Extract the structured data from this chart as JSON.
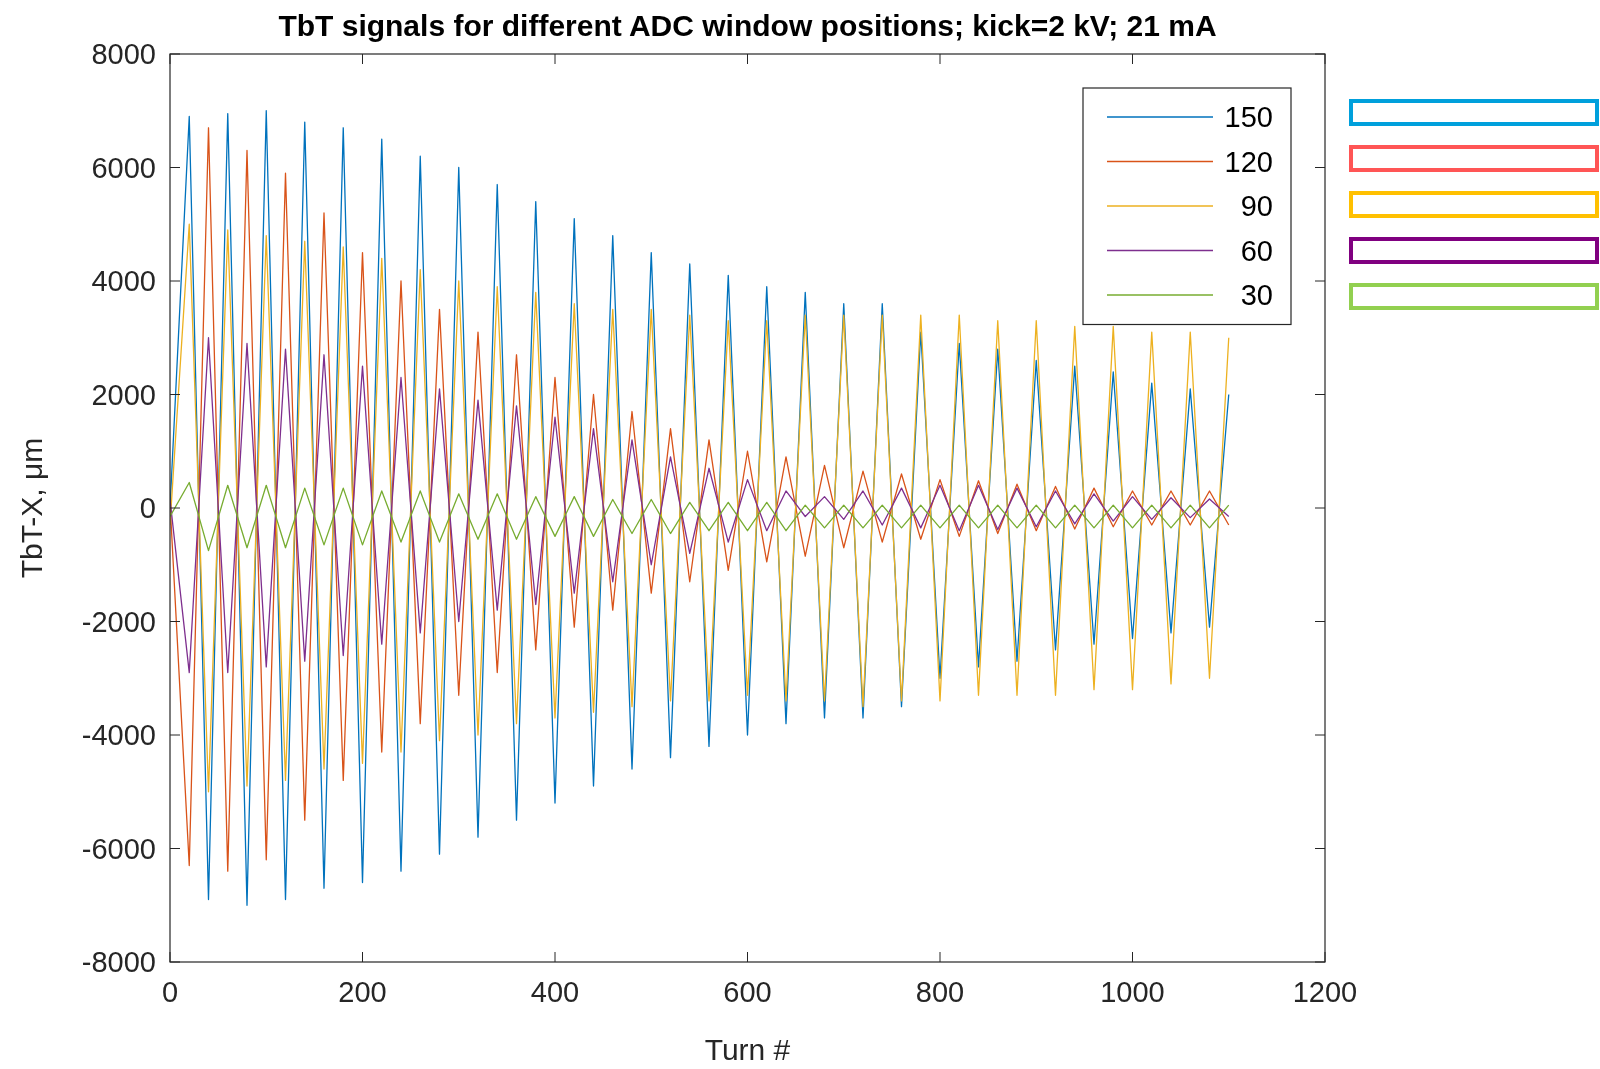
{
  "chart_data": {
    "type": "line",
    "title": "TbT signals for different ADC window positions; kick=2 kV; 21 mA",
    "xlabel": "Turn #",
    "ylabel": "TbT-X, μm",
    "x": [
      0,
      20,
      40,
      60,
      80,
      100,
      120,
      140,
      160,
      180,
      200,
      220,
      240,
      260,
      280,
      300,
      320,
      340,
      360,
      380,
      400,
      420,
      440,
      460,
      480,
      500,
      520,
      540,
      560,
      580,
      600,
      620,
      640,
      660,
      680,
      700,
      720,
      740,
      760,
      780,
      800,
      820,
      840,
      860,
      880,
      900,
      920,
      940,
      960,
      980,
      1000,
      1020,
      1040,
      1060,
      1080,
      1100
    ],
    "series": [
      {
        "name": "150",
        "color": "#0072bd",
        "values": [
          0,
          6900,
          -6900,
          6950,
          -7000,
          7000,
          -6900,
          6800,
          -6700,
          6700,
          -6600,
          6500,
          -6400,
          6200,
          -6100,
          6000,
          -5800,
          5700,
          -5500,
          5400,
          -5200,
          5100,
          -4900,
          4800,
          -4600,
          4500,
          -4400,
          4300,
          -4200,
          4100,
          -4000,
          3900,
          -3800,
          3800,
          -3700,
          3600,
          -3700,
          3600,
          -3500,
          3100,
          -3000,
          2900,
          -2800,
          2800,
          -2700,
          2600,
          -2500,
          2500,
          -2400,
          2400,
          -2300,
          2200,
          -2200,
          2100,
          -2100,
          2000
        ]
      },
      {
        "name": "120",
        "color": "#d95319",
        "values": [
          100,
          -6300,
          6700,
          -6400,
          6300,
          -6200,
          5900,
          -5500,
          5200,
          -4800,
          4500,
          -4300,
          4000,
          -3800,
          3500,
          -3300,
          3100,
          -2900,
          2700,
          -2500,
          2300,
          -2100,
          2000,
          -1800,
          1700,
          -1500,
          1400,
          -1300,
          1200,
          -1100,
          1000,
          -950,
          900,
          -850,
          750,
          -700,
          650,
          -600,
          600,
          -550,
          500,
          -500,
          480,
          -450,
          420,
          -400,
          380,
          -370,
          350,
          -330,
          300,
          -300,
          300,
          -300,
          300,
          -300
        ]
      },
      {
        "name": "90",
        "color": "#edb120",
        "values": [
          -300,
          5000,
          -5000,
          4900,
          -4900,
          4800,
          -4800,
          4700,
          -4600,
          4600,
          -4500,
          4400,
          -4300,
          4200,
          -4100,
          4000,
          -4000,
          3900,
          -3800,
          3800,
          -3700,
          3600,
          -3600,
          3500,
          -3500,
          3500,
          -3400,
          3400,
          -3400,
          3300,
          -3300,
          3300,
          -3400,
          3400,
          -3400,
          3400,
          -3500,
          3400,
          -3400,
          3400,
          -3400,
          3400,
          -3300,
          3300,
          -3300,
          3300,
          -3300,
          3200,
          -3200,
          3200,
          -3200,
          3100,
          -3100,
          3100,
          -3000,
          3000
        ]
      },
      {
        "name": "60",
        "color": "#7e2f8e",
        "values": [
          150,
          -2900,
          3000,
          -2900,
          2900,
          -2800,
          2800,
          -2700,
          2700,
          -2600,
          2500,
          -2400,
          2300,
          -2200,
          2100,
          -2000,
          1900,
          -1800,
          1800,
          -1700,
          1600,
          -1500,
          1400,
          -1300,
          1200,
          -1000,
          900,
          -800,
          700,
          -600,
          500,
          -400,
          300,
          -150,
          200,
          -200,
          300,
          -300,
          350,
          -350,
          400,
          -400,
          400,
          -380,
          350,
          -330,
          300,
          -280,
          250,
          -230,
          200,
          -200,
          180,
          -170,
          160,
          -150
        ]
      },
      {
        "name": "30",
        "color": "#77ac30",
        "values": [
          -150,
          450,
          -750,
          400,
          -700,
          400,
          -700,
          350,
          -650,
          350,
          -650,
          300,
          -600,
          300,
          -600,
          250,
          -550,
          250,
          -550,
          200,
          -500,
          200,
          -500,
          150,
          -450,
          150,
          -450,
          100,
          -400,
          100,
          -400,
          100,
          -400,
          50,
          -350,
          50,
          -350,
          50,
          -350,
          50,
          -350,
          50,
          -350,
          50,
          -350,
          50,
          -350,
          50,
          -350,
          50,
          -350,
          50,
          -350,
          50,
          -350,
          50
        ]
      }
    ],
    "xlim": [
      0,
      1200
    ],
    "xticks": [
      0,
      200,
      400,
      600,
      800,
      1000,
      1200
    ],
    "ylim": [
      -8000,
      8000
    ],
    "yticks": [
      -8000,
      -6000,
      -4000,
      -2000,
      0,
      2000,
      4000,
      6000,
      8000
    ],
    "legend": "top right",
    "grid": false,
    "marker": "none",
    "line_style": "solid"
  }
}
